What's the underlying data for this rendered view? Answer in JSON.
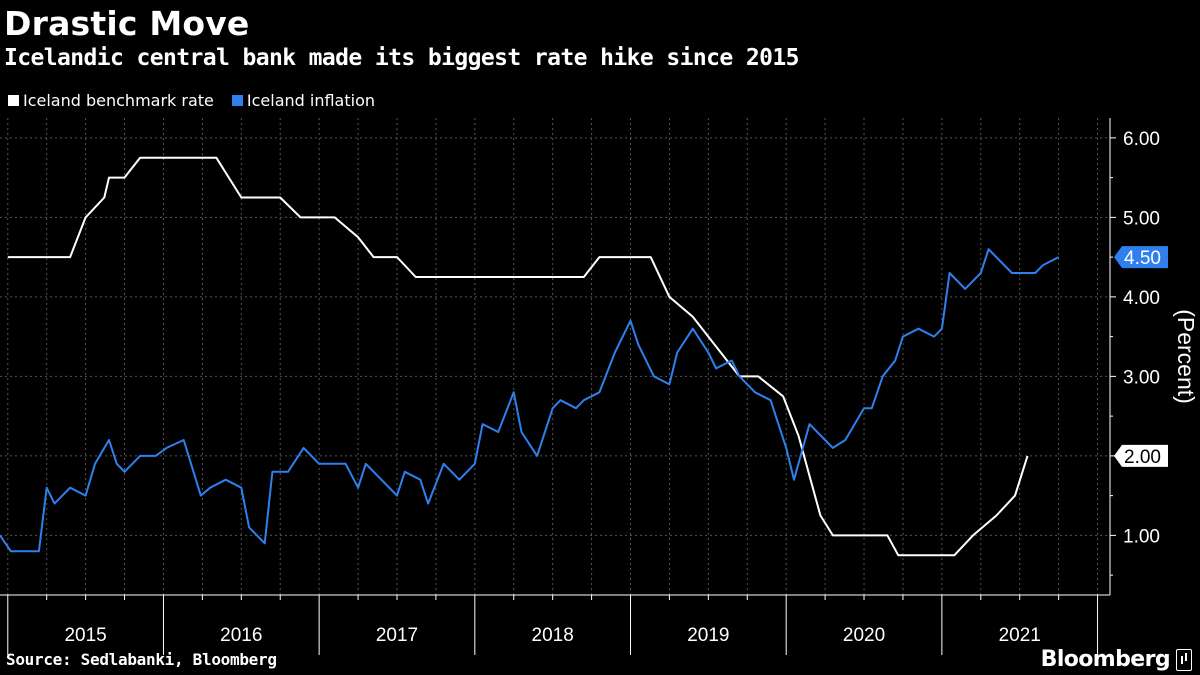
{
  "title": "Drastic Move",
  "subtitle": "Icelandic central bank made its biggest rate hike since 2015",
  "source": "Source: Sedlabanki, Bloomberg",
  "brand": "Bloomberg",
  "colors": {
    "background": "#000000",
    "rate": "#ffffff",
    "inflation": "#2f80ed",
    "grid": "#555555"
  },
  "chart_data": {
    "type": "line",
    "ylabel": "(Percent)",
    "ylim": [
      0.25,
      6.25
    ],
    "xlim": [
      2014.45,
      2021.58
    ],
    "y_ticks": [
      "6.00",
      "5.00",
      "4.00",
      "3.00",
      "2.00",
      "1.00"
    ],
    "x_tick_labels": [
      "2015",
      "2016",
      "2017",
      "2018",
      "2019",
      "2020",
      "2021"
    ],
    "grid": true,
    "legend_position": "top-left",
    "end_labels": [
      "4.50",
      "2.00"
    ],
    "series": [
      {
        "name": "Iceland benchmark rate",
        "color": "#ffffff",
        "points": [
          [
            2014.5,
            4.5
          ],
          [
            2014.9,
            4.5
          ],
          [
            2015.0,
            5.0
          ],
          [
            2015.12,
            5.25
          ],
          [
            2015.15,
            5.5
          ],
          [
            2015.25,
            5.5
          ],
          [
            2015.35,
            5.75
          ],
          [
            2015.5,
            5.75
          ],
          [
            2015.84,
            5.75
          ],
          [
            2016.0,
            5.25
          ],
          [
            2016.25,
            5.25
          ],
          [
            2016.38,
            5.0
          ],
          [
            2016.6,
            5.0
          ],
          [
            2016.75,
            4.75
          ],
          [
            2016.85,
            4.5
          ],
          [
            2017.0,
            4.5
          ],
          [
            2017.12,
            4.25
          ],
          [
            2017.5,
            4.25
          ],
          [
            2018.0,
            4.25
          ],
          [
            2018.2,
            4.25
          ],
          [
            2018.3,
            4.5
          ],
          [
            2018.55,
            4.5
          ],
          [
            2018.63,
            4.5
          ],
          [
            2018.75,
            4.0
          ],
          [
            2018.9,
            3.75
          ],
          [
            2019.0,
            3.5
          ],
          [
            2019.1,
            3.25
          ],
          [
            2019.2,
            3.0
          ],
          [
            2019.32,
            3.0
          ],
          [
            2019.48,
            2.75
          ],
          [
            2019.58,
            2.25
          ],
          [
            2019.65,
            1.75
          ],
          [
            2019.72,
            1.25
          ],
          [
            2019.8,
            1.0
          ],
          [
            2020.0,
            1.0
          ],
          [
            2020.15,
            1.0
          ],
          [
            2020.22,
            0.75
          ],
          [
            2020.3,
            0.75
          ],
          [
            2020.5,
            0.75
          ],
          [
            2020.58,
            0.75
          ],
          [
            2020.7,
            1.0
          ],
          [
            2020.85,
            1.25
          ],
          [
            2020.97,
            1.5
          ],
          [
            2021.05,
            2.0
          ]
        ]
      },
      {
        "name": "Iceland inflation",
        "color": "#2f80ed",
        "points": [
          [
            2014.45,
            1.0
          ],
          [
            2014.52,
            0.8
          ],
          [
            2014.6,
            0.8
          ],
          [
            2014.7,
            0.8
          ],
          [
            2014.75,
            1.6
          ],
          [
            2014.8,
            1.4
          ],
          [
            2014.9,
            1.6
          ],
          [
            2015.0,
            1.5
          ],
          [
            2015.06,
            1.9
          ],
          [
            2015.15,
            2.2
          ],
          [
            2015.2,
            1.9
          ],
          [
            2015.25,
            1.8
          ],
          [
            2015.35,
            2.0
          ],
          [
            2015.45,
            2.0
          ],
          [
            2015.52,
            2.1
          ],
          [
            2015.63,
            2.2
          ],
          [
            2015.74,
            1.5
          ],
          [
            2015.8,
            1.6
          ],
          [
            2015.9,
            1.7
          ],
          [
            2016.0,
            1.6
          ],
          [
            2016.05,
            1.1
          ],
          [
            2016.15,
            0.9
          ],
          [
            2016.2,
            1.8
          ],
          [
            2016.3,
            1.8
          ],
          [
            2016.4,
            2.1
          ],
          [
            2016.5,
            1.9
          ],
          [
            2016.55,
            1.9
          ],
          [
            2016.67,
            1.9
          ],
          [
            2016.75,
            1.6
          ],
          [
            2016.8,
            1.9
          ],
          [
            2016.9,
            1.7
          ],
          [
            2017.0,
            1.5
          ],
          [
            2017.05,
            1.8
          ],
          [
            2017.15,
            1.7
          ],
          [
            2017.2,
            1.4
          ],
          [
            2017.3,
            1.9
          ],
          [
            2017.4,
            1.7
          ],
          [
            2017.5,
            1.9
          ],
          [
            2017.55,
            2.4
          ],
          [
            2017.65,
            2.3
          ],
          [
            2017.75,
            2.8
          ],
          [
            2017.8,
            2.3
          ],
          [
            2017.9,
            2.0
          ],
          [
            2018.0,
            2.6
          ],
          [
            2018.05,
            2.7
          ],
          [
            2018.15,
            2.6
          ],
          [
            2018.2,
            2.7
          ],
          [
            2018.3,
            2.8
          ],
          [
            2018.4,
            3.3
          ],
          [
            2018.5,
            3.7
          ],
          [
            2018.55,
            3.4
          ],
          [
            2018.65,
            3.0
          ],
          [
            2018.75,
            2.9
          ],
          [
            2018.8,
            3.3
          ],
          [
            2018.9,
            3.6
          ],
          [
            2019.0,
            3.3
          ],
          [
            2019.05,
            3.1
          ],
          [
            2019.15,
            3.2
          ],
          [
            2019.2,
            3.0
          ],
          [
            2019.3,
            2.8
          ],
          [
            2019.4,
            2.7
          ],
          [
            2019.5,
            2.1
          ],
          [
            2019.55,
            1.7
          ],
          [
            2019.65,
            2.4
          ],
          [
            2019.75,
            2.2
          ],
          [
            2019.8,
            2.1
          ],
          [
            2019.88,
            2.2
          ],
          [
            2020.0,
            2.6
          ],
          [
            2020.05,
            2.6
          ],
          [
            2020.12,
            3.0
          ],
          [
            2020.2,
            3.2
          ],
          [
            2020.25,
            3.5
          ],
          [
            2020.35,
            3.6
          ],
          [
            2020.45,
            3.5
          ],
          [
            2020.5,
            3.6
          ],
          [
            2020.55,
            4.3
          ],
          [
            2020.65,
            4.1
          ],
          [
            2020.75,
            4.3
          ],
          [
            2020.8,
            4.6
          ],
          [
            2020.95,
            4.3
          ],
          [
            2021.05,
            4.3
          ],
          [
            2021.1,
            4.3
          ],
          [
            2021.15,
            4.4
          ],
          [
            2021.25,
            4.5
          ]
        ]
      }
    ]
  }
}
